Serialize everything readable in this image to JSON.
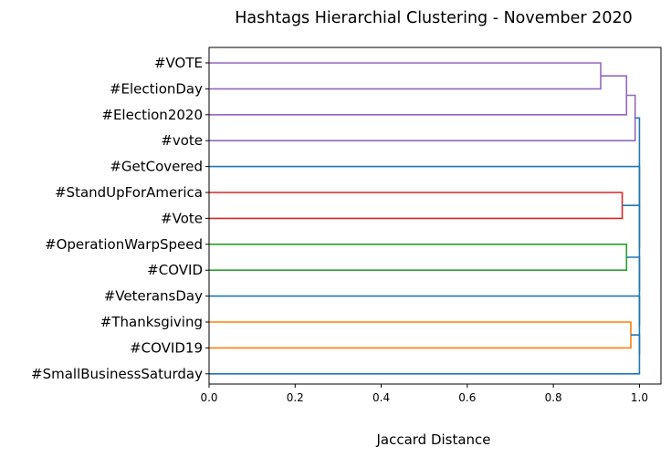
{
  "chart_data": {
    "type": "dendrogram",
    "orientation": "horizontal",
    "title": "Hashtags Hierarchial Clustering - November 2020",
    "xlabel": "Jaccard Distance",
    "xlim": [
      0,
      1.05
    ],
    "xticks": [
      0.0,
      0.2,
      0.4,
      0.6,
      0.8,
      1.0
    ],
    "xtick_labels": [
      "0.0",
      "0.2",
      "0.4",
      "0.6",
      "0.8",
      "1.0"
    ],
    "grid": false,
    "leaves": [
      "#VOTE",
      "#ElectionDay",
      "#Election2020",
      "#vote",
      "#GetCovered",
      "#StandUpForAmerica",
      "#Vote",
      "#OperationWarpSpeed",
      "#COVID",
      "#VeteransDay",
      "#Thanksgiving",
      "#COVID19",
      "#SmallBusinessSaturday"
    ],
    "colors": {
      "purple": "#9467bd",
      "red": "#d62728",
      "green": "#2ca02c",
      "orange": "#ff7f0e",
      "blue": "#1f77b4"
    },
    "merges": [
      {
        "a": "#VOTE",
        "b": "#ElectionDay",
        "distance": 0.91,
        "color": "purple"
      },
      {
        "a": "c0",
        "b": "#Election2020",
        "distance": 0.97,
        "color": "purple"
      },
      {
        "a": "c1",
        "b": "#vote",
        "distance": 0.99,
        "color": "purple"
      },
      {
        "a": "#StandUpForAmerica",
        "b": "#Vote",
        "distance": 0.96,
        "color": "red"
      },
      {
        "a": "#OperationWarpSpeed",
        "b": "#COVID",
        "distance": 0.97,
        "color": "green"
      },
      {
        "a": "#Thanksgiving",
        "b": "#COVID19",
        "distance": 0.98,
        "color": "orange"
      },
      {
        "a": "c5",
        "b": "#SmallBusinessSaturday",
        "distance": 1.0,
        "color": "blue"
      },
      {
        "a": "#VeteransDay",
        "b": "c6",
        "distance": 1.0,
        "color": "blue"
      },
      {
        "a": "c4",
        "b": "c7",
        "distance": 1.0,
        "color": "blue"
      },
      {
        "a": "c3",
        "b": "c8",
        "distance": 1.0,
        "color": "blue"
      },
      {
        "a": "#GetCovered",
        "b": "c9",
        "distance": 1.0,
        "color": "blue"
      },
      {
        "a": "c2",
        "b": "c10",
        "distance": 1.0,
        "color": "blue"
      }
    ]
  }
}
